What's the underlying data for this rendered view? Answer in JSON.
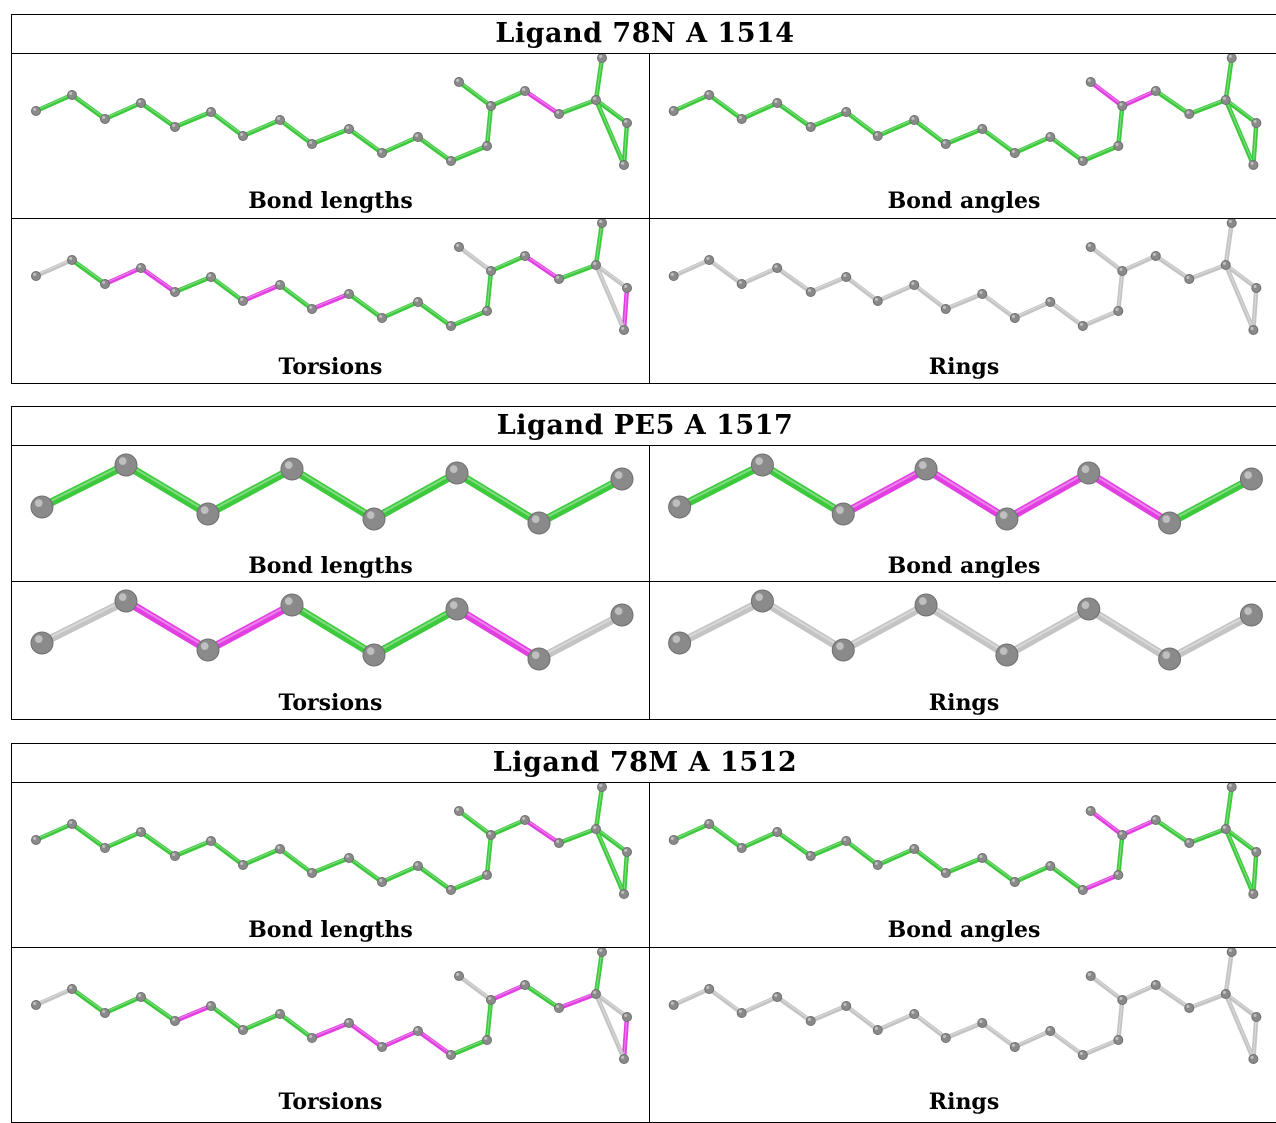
{
  "colors": {
    "ok": "#3cc93c",
    "outlier": "#e23fe2",
    "neutral": "#c4c4c4",
    "atom": "#8a8a8a"
  },
  "ligands": [
    {
      "title": "Ligand 78N A 1514",
      "molecule": "long-chain",
      "panels": [
        {
          "label": "Bond lengths",
          "bond_status": [
            "ok",
            "ok",
            "ok",
            "ok",
            "ok",
            "ok",
            "ok",
            "ok",
            "ok",
            "ok",
            "ok",
            "ok",
            "ok",
            "ok",
            "ok",
            "ok",
            "outlier",
            "ok",
            "ok",
            "ok",
            "ok",
            "ok",
            "ok"
          ]
        },
        {
          "label": "Bond angles",
          "bond_status": [
            "ok",
            "ok",
            "ok",
            "ok",
            "ok",
            "ok",
            "ok",
            "ok",
            "ok",
            "ok",
            "ok",
            "ok",
            "ok",
            "ok",
            "outlier",
            "outlier",
            "ok",
            "ok",
            "ok",
            "ok",
            "ok",
            "ok",
            "ok"
          ]
        },
        {
          "label": "Torsions",
          "bond_status": [
            "neutral",
            "ok",
            "outlier",
            "outlier",
            "ok",
            "ok",
            "outlier",
            "ok",
            "outlier",
            "ok",
            "ok",
            "ok",
            "ok",
            "ok",
            "neutral",
            "ok",
            "outlier",
            "ok",
            "ok",
            "neutral",
            "outlier",
            "neutral",
            "neutral"
          ]
        },
        {
          "label": "Rings",
          "bond_status": [
            "neutral",
            "neutral",
            "neutral",
            "neutral",
            "neutral",
            "neutral",
            "neutral",
            "neutral",
            "neutral",
            "neutral",
            "neutral",
            "neutral",
            "neutral",
            "neutral",
            "neutral",
            "neutral",
            "neutral",
            "neutral",
            "neutral",
            "neutral",
            "neutral",
            "neutral",
            "neutral"
          ]
        }
      ]
    },
    {
      "title": "Ligand PE5 A 1517",
      "molecule": "short-chain",
      "panels": [
        {
          "label": "Bond lengths",
          "bond_status": [
            "ok",
            "ok",
            "ok",
            "ok",
            "ok",
            "ok",
            "ok"
          ]
        },
        {
          "label": "Bond angles",
          "bond_status": [
            "ok",
            "ok",
            "outlier",
            "outlier",
            "outlier",
            "outlier",
            "ok"
          ]
        },
        {
          "label": "Torsions",
          "bond_status": [
            "neutral",
            "outlier",
            "outlier",
            "ok",
            "ok",
            "outlier",
            "neutral"
          ]
        },
        {
          "label": "Rings",
          "bond_status": [
            "neutral",
            "neutral",
            "neutral",
            "neutral",
            "neutral",
            "neutral",
            "neutral"
          ]
        }
      ]
    },
    {
      "title": "Ligand 78M A 1512",
      "molecule": "long-chain",
      "panels": [
        {
          "label": "Bond lengths",
          "bond_status": [
            "ok",
            "ok",
            "ok",
            "ok",
            "ok",
            "ok",
            "ok",
            "ok",
            "ok",
            "ok",
            "ok",
            "ok",
            "ok",
            "ok",
            "ok",
            "ok",
            "outlier",
            "ok",
            "ok",
            "ok",
            "ok",
            "ok",
            "ok"
          ]
        },
        {
          "label": "Bond angles",
          "bond_status": [
            "ok",
            "ok",
            "ok",
            "ok",
            "ok",
            "ok",
            "ok",
            "ok",
            "ok",
            "ok",
            "ok",
            "ok",
            "outlier",
            "ok",
            "outlier",
            "outlier",
            "ok",
            "ok",
            "ok",
            "ok",
            "ok",
            "ok",
            "ok"
          ]
        },
        {
          "label": "Torsions",
          "bond_status": [
            "neutral",
            "ok",
            "ok",
            "ok",
            "outlier",
            "ok",
            "ok",
            "ok",
            "outlier",
            "outlier",
            "outlier",
            "outlier",
            "ok",
            "ok",
            "neutral",
            "outlier",
            "ok",
            "outlier",
            "ok",
            "neutral",
            "outlier",
            "neutral",
            "neutral"
          ]
        },
        {
          "label": "Rings",
          "bond_status": [
            "neutral",
            "neutral",
            "neutral",
            "neutral",
            "neutral",
            "neutral",
            "neutral",
            "neutral",
            "neutral",
            "neutral",
            "neutral",
            "neutral",
            "neutral",
            "neutral",
            "neutral",
            "neutral",
            "neutral",
            "neutral",
            "neutral",
            "neutral",
            "neutral",
            "neutral",
            "neutral"
          ]
        }
      ]
    }
  ]
}
